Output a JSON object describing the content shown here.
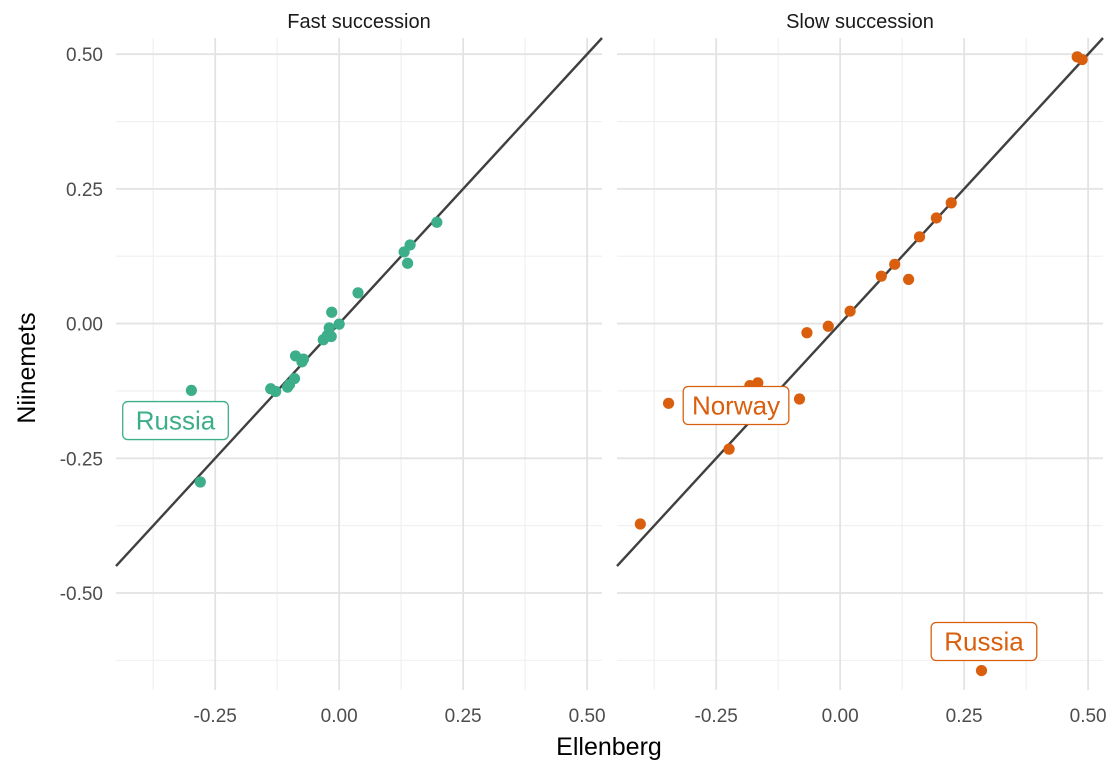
{
  "chart_data": {
    "type": "scatter",
    "xlabel": "Ellenberg",
    "ylabel": "Niinemets",
    "xlim": [
      -0.45,
      0.53
    ],
    "ylim": [
      -0.68,
      0.53
    ],
    "x_ticks": [
      "-0.25",
      "0.00",
      "0.25",
      "0.50"
    ],
    "y_ticks": [
      "0.50",
      "0.25",
      "0.00",
      "-0.25",
      "-0.50"
    ],
    "x_tick_values": [
      -0.25,
      0,
      0.25,
      0.5
    ],
    "y_tick_values": [
      0.5,
      0.25,
      0,
      -0.25,
      -0.5
    ],
    "grid": true,
    "reference_line": "y = x",
    "panels": [
      {
        "title": "Fast succession",
        "color": "#3dae8a",
        "points": [
          {
            "x": -0.298,
            "y": -0.124
          },
          {
            "x": -0.28,
            "y": -0.294
          },
          {
            "x": -0.138,
            "y": -0.121
          },
          {
            "x": -0.128,
            "y": -0.126
          },
          {
            "x": -0.104,
            "y": -0.118
          },
          {
            "x": -0.1,
            "y": -0.113
          },
          {
            "x": -0.09,
            "y": -0.102
          },
          {
            "x": -0.088,
            "y": -0.06
          },
          {
            "x": -0.075,
            "y": -0.071
          },
          {
            "x": -0.072,
            "y": -0.066
          },
          {
            "x": -0.032,
            "y": -0.03
          },
          {
            "x": -0.024,
            "y": -0.022
          },
          {
            "x": -0.02,
            "y": -0.008
          },
          {
            "x": -0.016,
            "y": -0.024
          },
          {
            "x": -0.015,
            "y": 0.021
          },
          {
            "x": 0.0,
            "y": -0.001
          },
          {
            "x": 0.038,
            "y": 0.057
          },
          {
            "x": 0.131,
            "y": 0.133
          },
          {
            "x": 0.138,
            "y": 0.112
          },
          {
            "x": 0.143,
            "y": 0.146
          },
          {
            "x": 0.197,
            "y": 0.188
          }
        ],
        "labels": [
          {
            "text": "Russia",
            "x": -0.33,
            "y": -0.18
          }
        ]
      },
      {
        "title": "Slow succession",
        "color": "#d95f0e",
        "points": [
          {
            "x": -0.403,
            "y": -0.372
          },
          {
            "x": -0.346,
            "y": -0.148
          },
          {
            "x": -0.224,
            "y": -0.233
          },
          {
            "x": -0.182,
            "y": -0.115
          },
          {
            "x": -0.166,
            "y": -0.11
          },
          {
            "x": -0.082,
            "y": -0.14
          },
          {
            "x": -0.067,
            "y": -0.017
          },
          {
            "x": -0.024,
            "y": -0.005
          },
          {
            "x": 0.02,
            "y": 0.023
          },
          {
            "x": 0.083,
            "y": 0.088
          },
          {
            "x": 0.11,
            "y": 0.11
          },
          {
            "x": 0.138,
            "y": 0.082
          },
          {
            "x": 0.16,
            "y": 0.161
          },
          {
            "x": 0.194,
            "y": 0.196
          },
          {
            "x": 0.224,
            "y": 0.224
          },
          {
            "x": 0.285,
            "y": -0.644
          },
          {
            "x": 0.478,
            "y": 0.495
          },
          {
            "x": 0.488,
            "y": 0.49
          }
        ],
        "labels": [
          {
            "text": "Norway",
            "x": -0.21,
            "y": -0.152
          },
          {
            "text": "Russia",
            "x": 0.29,
            "y": -0.59
          }
        ]
      }
    ]
  }
}
